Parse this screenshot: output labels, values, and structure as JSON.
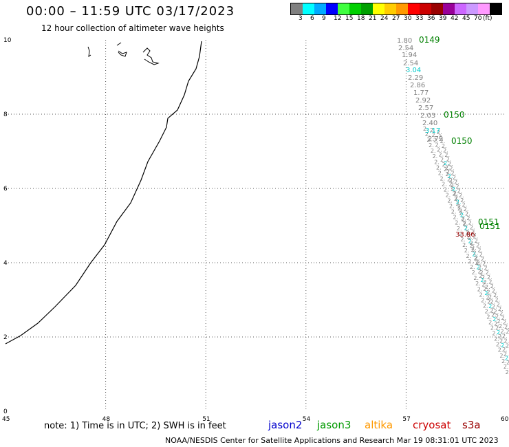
{
  "header": {
    "title": "00:00 – 11:59 UTC 03/17/2023",
    "subtitle": "12 hour collection of altimeter wave heights"
  },
  "legend": {
    "colors": [
      "#808080",
      "#00ffff",
      "#00aaff",
      "#0000ff",
      "#40ff40",
      "#00d000",
      "#00a000",
      "#ffff00",
      "#ffcc00",
      "#ff9900",
      "#ff0000",
      "#cc0000",
      "#990000",
      "#990099",
      "#cc66ff",
      "#cc99ff",
      "#ff99ff",
      "#000000"
    ],
    "labels": [
      "3",
      "6",
      "9",
      "12",
      "15",
      "18",
      "21",
      "24",
      "27",
      "30",
      "33",
      "36",
      "39",
      "42",
      "45",
      "70",
      "(ft)"
    ]
  },
  "axes": {
    "x_ticks": [
      "45",
      "48",
      "51",
      "54",
      "57",
      "60"
    ],
    "y_ticks": [
      "0",
      "2",
      "4",
      "6",
      "8",
      "10"
    ]
  },
  "track_labels": {
    "swh_values": [
      {
        "text": "1.80",
        "color": "#808080"
      },
      {
        "text": "2.54",
        "color": "#808080"
      },
      {
        "text": "1.94",
        "color": "#808080"
      },
      {
        "text": "2.54",
        "color": "#808080"
      },
      {
        "text": "3.04",
        "color": "#00cccc"
      },
      {
        "text": "2.29",
        "color": "#808080"
      },
      {
        "text": "2.86",
        "color": "#808080"
      },
      {
        "text": "1.77",
        "color": "#808080"
      },
      {
        "text": "2.92",
        "color": "#808080"
      },
      {
        "text": "2.57",
        "color": "#808080"
      },
      {
        "text": "2.03",
        "color": "#808080"
      },
      {
        "text": "2.40",
        "color": "#808080"
      },
      {
        "text": "3.17",
        "color": "#00cccc"
      },
      {
        "text": "2.72",
        "color": "#808080"
      },
      {
        "text": "33.86",
        "color": "#990000"
      }
    ],
    "times": [
      "0149",
      "0150",
      "0150",
      "0151",
      "0151"
    ]
  },
  "note": "note: 1) Time is in UTC; 2) SWH is in feet",
  "satellites": [
    {
      "name": "jason2",
      "color": "#0000cc"
    },
    {
      "name": "jason3",
      "color": "#009900"
    },
    {
      "name": "altika",
      "color": "#ff9900"
    },
    {
      "name": "cryosat",
      "color": "#cc0000"
    },
    {
      "name": "s3a",
      "color": "#990000"
    }
  ],
  "footer": "NOAA/NESDIS Center for Satellite Applications and Research    Mar 19 08:31:01 UTC 2023"
}
